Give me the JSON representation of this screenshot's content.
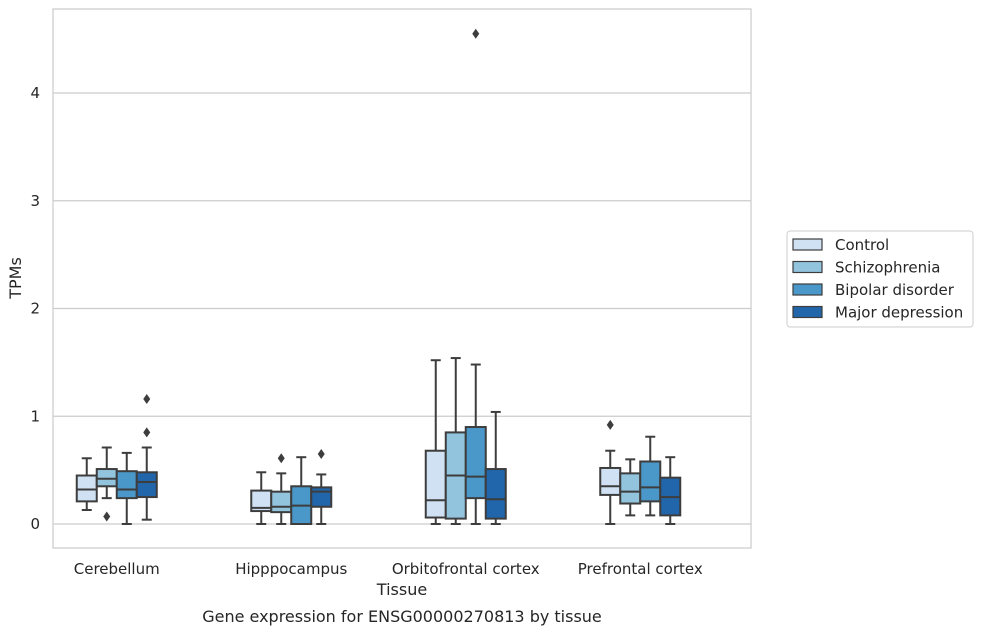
{
  "chart_data": {
    "type": "box",
    "caption": "Gene expression for ENSG00000270813 by tissue",
    "xlabel": "Tissue",
    "ylabel": "TPMs",
    "ylim": [
      -0.22,
      4.8
    ],
    "yticks": [
      0,
      1,
      2,
      3,
      4
    ],
    "grid": "horizontal",
    "legend_position": "right",
    "categories": [
      "Cerebellum",
      "Hipppocampus",
      "Orbitofrontal cortex",
      "Prefrontal cortex"
    ],
    "series": [
      {
        "name": "Control",
        "color": "#cfe1f2",
        "boxes": [
          {
            "whislo": 0.13,
            "q1": 0.21,
            "med": 0.32,
            "q3": 0.45,
            "whishi": 0.61,
            "fliers": []
          },
          {
            "whislo": 0.0,
            "q1": 0.12,
            "med": 0.15,
            "q3": 0.31,
            "whishi": 0.48,
            "fliers": []
          },
          {
            "whislo": 0.0,
            "q1": 0.06,
            "med": 0.22,
            "q3": 0.68,
            "whishi": 1.52,
            "fliers": []
          },
          {
            "whislo": 0.0,
            "q1": 0.27,
            "med": 0.35,
            "q3": 0.52,
            "whishi": 0.68,
            "fliers": [
              0.92
            ]
          }
        ]
      },
      {
        "name": "Schizophrenia",
        "color": "#93c4de",
        "boxes": [
          {
            "whislo": 0.24,
            "q1": 0.35,
            "med": 0.42,
            "q3": 0.51,
            "whishi": 0.71,
            "fliers": [
              0.07
            ]
          },
          {
            "whislo": 0.0,
            "q1": 0.11,
            "med": 0.16,
            "q3": 0.3,
            "whishi": 0.47,
            "fliers": [
              0.61
            ]
          },
          {
            "whislo": 0.0,
            "q1": 0.05,
            "med": 0.45,
            "q3": 0.85,
            "whishi": 1.54,
            "fliers": []
          },
          {
            "whislo": 0.08,
            "q1": 0.19,
            "med": 0.3,
            "q3": 0.47,
            "whishi": 0.6,
            "fliers": []
          }
        ]
      },
      {
        "name": "Bipolar disorder",
        "color": "#4a98c9",
        "boxes": [
          {
            "whislo": 0.0,
            "q1": 0.24,
            "med": 0.32,
            "q3": 0.49,
            "whishi": 0.66,
            "fliers": []
          },
          {
            "whislo": 0.0,
            "q1": 0.0,
            "med": 0.17,
            "q3": 0.35,
            "whishi": 0.62,
            "fliers": []
          },
          {
            "whislo": 0.0,
            "q1": 0.24,
            "med": 0.44,
            "q3": 0.9,
            "whishi": 1.48,
            "fliers": [
              4.55
            ]
          },
          {
            "whislo": 0.08,
            "q1": 0.21,
            "med": 0.34,
            "q3": 0.58,
            "whishi": 0.81,
            "fliers": []
          }
        ]
      },
      {
        "name": "Major depression",
        "color": "#2165ab",
        "boxes": [
          {
            "whislo": 0.04,
            "q1": 0.25,
            "med": 0.39,
            "q3": 0.48,
            "whishi": 0.71,
            "fliers": [
              0.85,
              1.16
            ]
          },
          {
            "whislo": 0.0,
            "q1": 0.16,
            "med": 0.3,
            "q3": 0.34,
            "whishi": 0.46,
            "fliers": [
              0.65
            ]
          },
          {
            "whislo": 0.0,
            "q1": 0.05,
            "med": 0.23,
            "q3": 0.51,
            "whishi": 1.04,
            "fliers": []
          },
          {
            "whislo": 0.0,
            "q1": 0.08,
            "med": 0.25,
            "q3": 0.43,
            "whishi": 0.62,
            "fliers": []
          }
        ]
      }
    ]
  }
}
